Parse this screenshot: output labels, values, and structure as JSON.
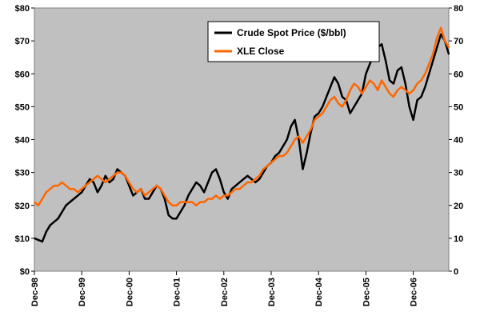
{
  "chart_data": {
    "type": "line",
    "title": "",
    "xlabel": "",
    "ylabel": "",
    "y_left": {
      "ylim": [
        0,
        80
      ],
      "tick_labels": [
        "$0",
        "$10",
        "$20",
        "$30",
        "$40",
        "$50",
        "$60",
        "$70",
        "$80"
      ]
    },
    "y_right": {
      "ylim": [
        0,
        80
      ],
      "tick_labels": [
        "0",
        "10",
        "20",
        "30",
        "40",
        "50",
        "60",
        "70",
        "80"
      ]
    },
    "x_tick_labels": [
      "Dec-98",
      "Dec-99",
      "Dec-00",
      "Dec-01",
      "Dec-02",
      "Dec-03",
      "Dec-04",
      "Dec-05",
      "Dec-06"
    ],
    "grid": false,
    "legend_position": "top-right",
    "plot_background": "#c0c0c0",
    "series": [
      {
        "name": "Crude Spot Price ($/bbl)",
        "axis": "left",
        "color": "#000000",
        "x": [
          "1998-12",
          "1999-01",
          "1999-02",
          "1999-03",
          "1999-04",
          "1999-05",
          "1999-06",
          "1999-07",
          "1999-08",
          "1999-09",
          "1999-10",
          "1999-11",
          "1999-12",
          "2000-01",
          "2000-02",
          "2000-03",
          "2000-04",
          "2000-05",
          "2000-06",
          "2000-07",
          "2000-08",
          "2000-09",
          "2000-10",
          "2000-11",
          "2000-12",
          "2001-01",
          "2001-02",
          "2001-03",
          "2001-04",
          "2001-05",
          "2001-06",
          "2001-07",
          "2001-08",
          "2001-09",
          "2001-10",
          "2001-11",
          "2001-12",
          "2002-01",
          "2002-02",
          "2002-03",
          "2002-04",
          "2002-05",
          "2002-06",
          "2002-07",
          "2002-08",
          "2002-09",
          "2002-10",
          "2002-11",
          "2002-12",
          "2003-01",
          "2003-02",
          "2003-03",
          "2003-04",
          "2003-05",
          "2003-06",
          "2003-07",
          "2003-08",
          "2003-09",
          "2003-10",
          "2003-11",
          "2003-12",
          "2004-01",
          "2004-02",
          "2004-03",
          "2004-04",
          "2004-05",
          "2004-06",
          "2004-07",
          "2004-08",
          "2004-09",
          "2004-10",
          "2004-11",
          "2004-12",
          "2005-01",
          "2005-02",
          "2005-03",
          "2005-04",
          "2005-05",
          "2005-06",
          "2005-07",
          "2005-08",
          "2005-09",
          "2005-10",
          "2005-11",
          "2005-12",
          "2006-01",
          "2006-02",
          "2006-03",
          "2006-04",
          "2006-05",
          "2006-06",
          "2006-07",
          "2006-08",
          "2006-09",
          "2006-10",
          "2006-11",
          "2006-12",
          "2007-01",
          "2007-02",
          "2007-03",
          "2007-04",
          "2007-05",
          "2007-06",
          "2007-07",
          "2007-08",
          "2007-09"
        ],
        "values": [
          10,
          9.5,
          9,
          12,
          14,
          15,
          16,
          18,
          20,
          21,
          22,
          23,
          24,
          26,
          28,
          27,
          24,
          26,
          29,
          27,
          28,
          31,
          30,
          29,
          26,
          23,
          24,
          25,
          22,
          22,
          24,
          26,
          25,
          22,
          17,
          16,
          16,
          18,
          20,
          23,
          25,
          27,
          26,
          24,
          27,
          30,
          31,
          28,
          24,
          22,
          25,
          26,
          27,
          28,
          29,
          28,
          27,
          28,
          30,
          32,
          33,
          35,
          36,
          38,
          40,
          44,
          46,
          40,
          31,
          36,
          42,
          47,
          48,
          50,
          53,
          56,
          59,
          57,
          53,
          52,
          48,
          50,
          52,
          54,
          60,
          63,
          66,
          68,
          69,
          64,
          58,
          57,
          61,
          62,
          57,
          50,
          46,
          52,
          53,
          56,
          60,
          64,
          68,
          72,
          70,
          66
        ]
      },
      {
        "name": "XLE Close",
        "axis": "right",
        "color": "#ff6600",
        "x": [
          "1998-12",
          "1999-01",
          "1999-02",
          "1999-03",
          "1999-04",
          "1999-05",
          "1999-06",
          "1999-07",
          "1999-08",
          "1999-09",
          "1999-10",
          "1999-11",
          "1999-12",
          "2000-01",
          "2000-02",
          "2000-03",
          "2000-04",
          "2000-05",
          "2000-06",
          "2000-07",
          "2000-08",
          "2000-09",
          "2000-10",
          "2000-11",
          "2000-12",
          "2001-01",
          "2001-02",
          "2001-03",
          "2001-04",
          "2001-05",
          "2001-06",
          "2001-07",
          "2001-08",
          "2001-09",
          "2001-10",
          "2001-11",
          "2001-12",
          "2002-01",
          "2002-02",
          "2002-03",
          "2002-04",
          "2002-05",
          "2002-06",
          "2002-07",
          "2002-08",
          "2002-09",
          "2002-10",
          "2002-11",
          "2002-12",
          "2003-01",
          "2003-02",
          "2003-03",
          "2003-04",
          "2003-05",
          "2003-06",
          "2003-07",
          "2003-08",
          "2003-09",
          "2003-10",
          "2003-11",
          "2003-12",
          "2004-01",
          "2004-02",
          "2004-03",
          "2004-04",
          "2004-05",
          "2004-06",
          "2004-07",
          "2004-08",
          "2004-09",
          "2004-10",
          "2004-11",
          "2004-12",
          "2005-01",
          "2005-02",
          "2005-03",
          "2005-04",
          "2005-05",
          "2005-06",
          "2005-07",
          "2005-08",
          "2005-09",
          "2005-10",
          "2005-11",
          "2005-12",
          "2006-01",
          "2006-02",
          "2006-03",
          "2006-04",
          "2006-05",
          "2006-06",
          "2006-07",
          "2006-08",
          "2006-09",
          "2006-10",
          "2006-11",
          "2006-12",
          "2007-01",
          "2007-02",
          "2007-03",
          "2007-04",
          "2007-05",
          "2007-06",
          "2007-07",
          "2007-08",
          "2007-09"
        ],
        "values": [
          21,
          20,
          22,
          24,
          25,
          26,
          26,
          27,
          26,
          25,
          25,
          24,
          25,
          26,
          27,
          28,
          29,
          28,
          27,
          28,
          29,
          30,
          30,
          29,
          27,
          25,
          24,
          25,
          23,
          24,
          25,
          26,
          25,
          23,
          21,
          20,
          20,
          21,
          21,
          21,
          21,
          20,
          21,
          21,
          22,
          22,
          23,
          22,
          23,
          23,
          24,
          25,
          25,
          26,
          27,
          27,
          28,
          29,
          31,
          32,
          33,
          34,
          35,
          35,
          36,
          38,
          40,
          41,
          39,
          41,
          43,
          46,
          47,
          48,
          50,
          52,
          53,
          51,
          50,
          52,
          55,
          57,
          56,
          54,
          56,
          58,
          57,
          55,
          58,
          56,
          54,
          53,
          55,
          56,
          55,
          54,
          55,
          57,
          58,
          60,
          63,
          66,
          71,
          74,
          70,
          68
        ]
      }
    ]
  }
}
